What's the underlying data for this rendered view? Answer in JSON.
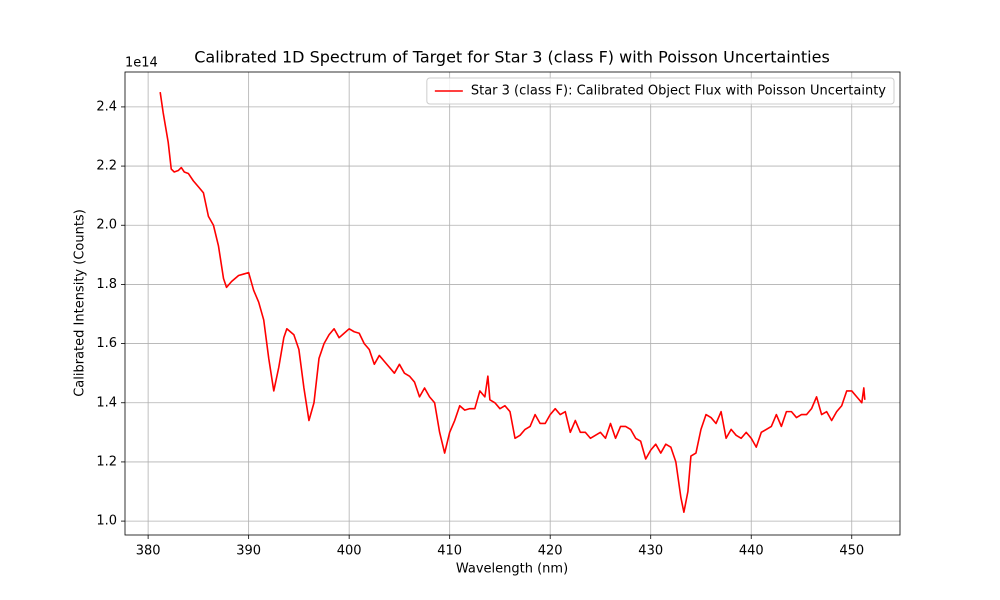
{
  "chart_data": {
    "type": "line",
    "title": "Calibrated 1D Spectrum of Target for Star 3 (class F) with Poisson Uncertainties",
    "x_label": "Wavelength (nm)",
    "y_label": "Calibrated Intensity (Counts)",
    "y_offset_label": "1e14",
    "xlim": [
      377.7,
      454.8
    ],
    "ylim": [
      0.953,
      2.518
    ],
    "xticks": [
      380,
      390,
      400,
      410,
      420,
      430,
      440,
      450
    ],
    "yticks": [
      {
        "value": 1,
        "label": "1.0"
      },
      1.2,
      1.4,
      1.6,
      1.8,
      {
        "value": 2,
        "label": "2.0"
      },
      2.2,
      2.4
    ],
    "grid": true,
    "legend": "upper right",
    "x": [
      381.2,
      381.5,
      382.0,
      382.3,
      382.6,
      383.0,
      383.3,
      383.6,
      384.0,
      384.5,
      385.0,
      385.5,
      386.0,
      386.5,
      387.0,
      387.5,
      387.8,
      388.3,
      389.0,
      389.5,
      390.0,
      390.5,
      391.0,
      391.5,
      392.0,
      392.5,
      393.0,
      393.5,
      393.8,
      394.5,
      395.0,
      395.5,
      396.0,
      396.5,
      397.0,
      397.5,
      398.0,
      398.5,
      399.0,
      399.5,
      400.0,
      400.5,
      401.0,
      401.5,
      402.0,
      402.5,
      403.0,
      403.5,
      404.0,
      404.5,
      405.0,
      405.5,
      406.0,
      406.5,
      407.0,
      407.5,
      408.0,
      408.5,
      409.0,
      409.5,
      410.0,
      410.5,
      411.0,
      411.5,
      412.0,
      412.5,
      413.0,
      413.5,
      413.8,
      414.0,
      414.5,
      415.0,
      415.5,
      416.0,
      416.5,
      417.0,
      417.5,
      418.0,
      418.5,
      419.0,
      419.5,
      420.0,
      420.5,
      421.0,
      421.5,
      422.0,
      422.5,
      423.0,
      423.5,
      424.0,
      424.5,
      425.0,
      425.5,
      426.0,
      426.5,
      427.0,
      427.5,
      428.0,
      428.5,
      429.0,
      429.5,
      430.0,
      430.5,
      431.0,
      431.5,
      432.0,
      432.5,
      433.0,
      433.3,
      433.7,
      434.0,
      434.5,
      435.0,
      435.5,
      436.0,
      436.5,
      437.0,
      437.5,
      438.0,
      438.5,
      439.0,
      439.5,
      440.0,
      440.5,
      441.0,
      441.5,
      442.0,
      442.5,
      443.0,
      443.5,
      444.0,
      444.5,
      445.0,
      445.5,
      446.0,
      446.5,
      447.0,
      447.5,
      448.0,
      448.5,
      449.0,
      449.5,
      450.0,
      450.5,
      451.0,
      451.2,
      451.3
    ],
    "series": [
      {
        "name": "Star 3 (class F): Calibrated Object Flux with Poisson Uncertainty",
        "color": "#ff0000",
        "values": [
          2.45,
          2.38,
          2.28,
          2.19,
          2.18,
          2.185,
          2.195,
          2.18,
          2.175,
          2.15,
          2.13,
          2.11,
          2.03,
          2.0,
          1.93,
          1.82,
          1.79,
          1.81,
          1.83,
          1.835,
          1.84,
          1.78,
          1.74,
          1.68,
          1.55,
          1.44,
          1.52,
          1.62,
          1.65,
          1.63,
          1.58,
          1.45,
          1.34,
          1.4,
          1.55,
          1.6,
          1.63,
          1.65,
          1.62,
          1.635,
          1.65,
          1.64,
          1.635,
          1.6,
          1.58,
          1.53,
          1.56,
          1.54,
          1.52,
          1.5,
          1.53,
          1.5,
          1.49,
          1.47,
          1.42,
          1.45,
          1.42,
          1.4,
          1.3,
          1.23,
          1.3,
          1.34,
          1.39,
          1.375,
          1.38,
          1.38,
          1.44,
          1.42,
          1.49,
          1.41,
          1.4,
          1.38,
          1.39,
          1.37,
          1.28,
          1.29,
          1.31,
          1.32,
          1.36,
          1.33,
          1.33,
          1.36,
          1.38,
          1.36,
          1.37,
          1.3,
          1.34,
          1.3,
          1.3,
          1.28,
          1.29,
          1.3,
          1.28,
          1.33,
          1.28,
          1.32,
          1.32,
          1.31,
          1.28,
          1.27,
          1.21,
          1.24,
          1.26,
          1.23,
          1.26,
          1.25,
          1.2,
          1.08,
          1.03,
          1.1,
          1.22,
          1.23,
          1.31,
          1.36,
          1.35,
          1.33,
          1.37,
          1.28,
          1.31,
          1.29,
          1.28,
          1.3,
          1.28,
          1.25,
          1.3,
          1.31,
          1.32,
          1.36,
          1.32,
          1.37,
          1.37,
          1.35,
          1.36,
          1.36,
          1.38,
          1.42,
          1.36,
          1.37,
          1.34,
          1.37,
          1.39,
          1.44,
          1.44,
          1.42,
          1.4,
          1.45,
          1.41
        ]
      }
    ]
  }
}
